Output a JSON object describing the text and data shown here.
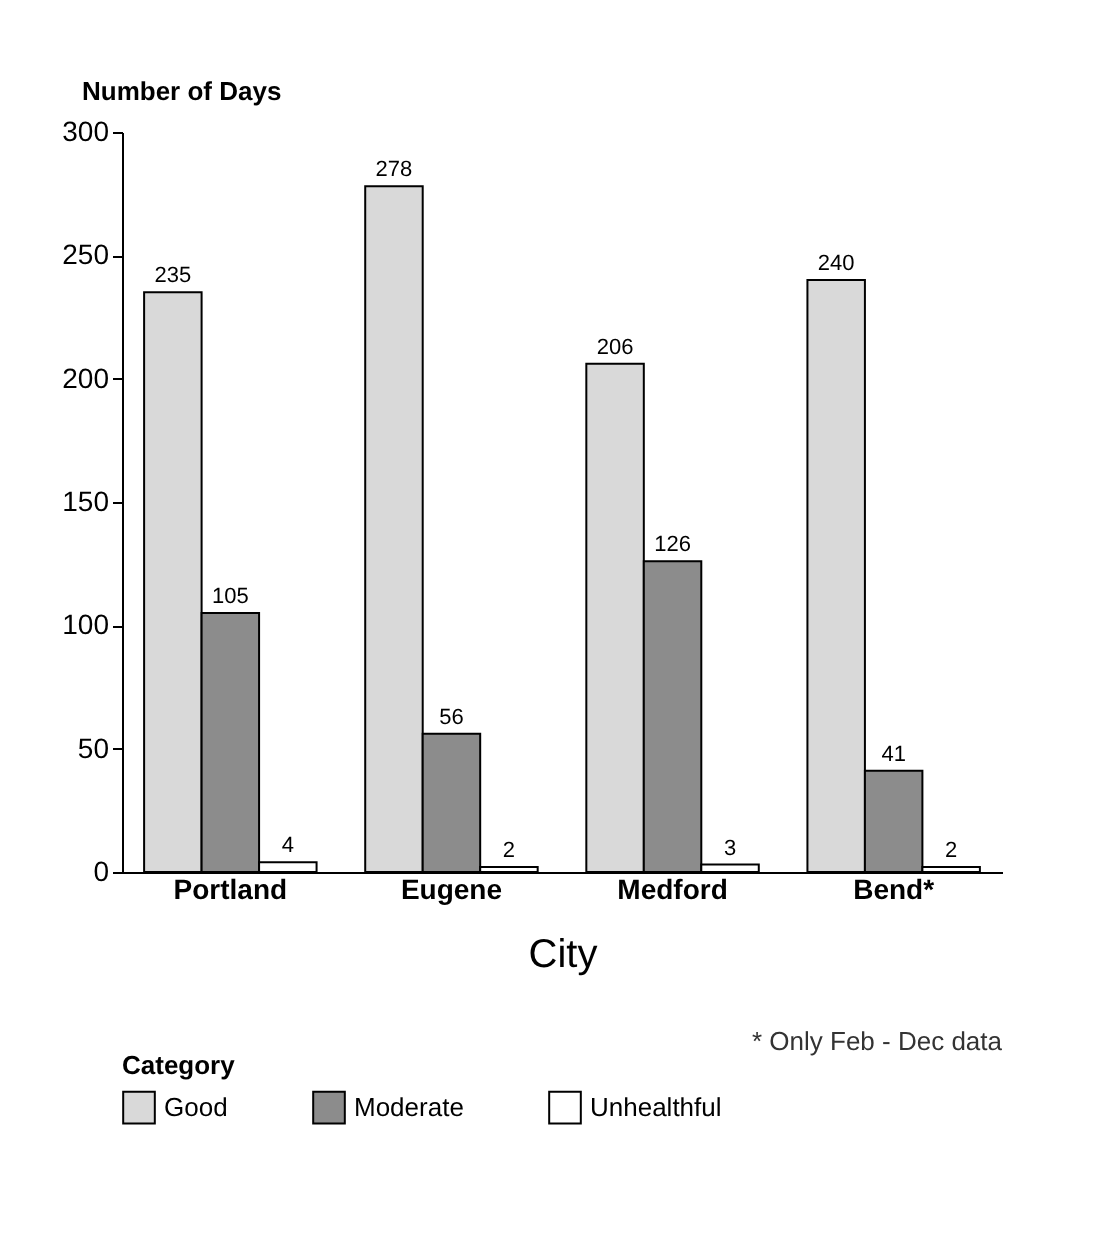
{
  "chart_data": {
    "type": "bar",
    "ylabel": "Number of Days",
    "xlabel": "City",
    "legend_title": "Category",
    "categories": [
      "Portland",
      "Eugene",
      "Medford",
      "Bend*"
    ],
    "series": [
      {
        "name": "Good",
        "color": "#d9d9d9",
        "values": [
          235,
          278,
          206,
          240
        ]
      },
      {
        "name": "Moderate",
        "color": "#8c8c8c",
        "values": [
          105,
          56,
          126,
          41
        ]
      },
      {
        "name": "Unhealthful",
        "color": "#ffffff",
        "values": [
          4,
          2,
          3,
          2
        ]
      }
    ],
    "ylim": [
      0,
      300
    ],
    "yticks": [
      0,
      50,
      100,
      150,
      200,
      250,
      300
    ],
    "grid": false,
    "legend": "bottom",
    "data_labels": true,
    "annotations": [
      "* Only Feb - Dec data"
    ]
  }
}
